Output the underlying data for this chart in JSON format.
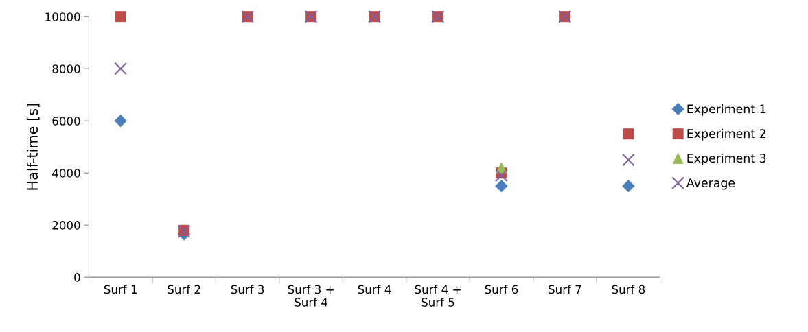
{
  "chart_data": {
    "type": "scatter",
    "ylabel": "Half-time [s]",
    "categories": [
      "Surf 1",
      "Surf 2",
      "Surf 3",
      "Surf 3 +\nSurf 4",
      "Surf 4",
      "Surf 4 +\nSurf 5",
      "Surf 6",
      "Surf 7",
      "Surf 8"
    ],
    "series": [
      {
        "name": "Experiment 1",
        "color": "#4a7ebb",
        "marker": "diamond",
        "values": [
          6000,
          1650,
          null,
          null,
          null,
          null,
          3500,
          null,
          3500
        ]
      },
      {
        "name": "Experiment 2",
        "color": "#be4b48",
        "marker": "square",
        "values": [
          10000,
          1800,
          10000,
          10000,
          10000,
          10000,
          4000,
          10000,
          5500
        ]
      },
      {
        "name": "Experiment 3",
        "color": "#98b954",
        "marker": "triangle",
        "values": [
          null,
          null,
          null,
          null,
          null,
          null,
          4200,
          null,
          null
        ]
      },
      {
        "name": "Average",
        "color": "#7d60a0",
        "marker": "cross",
        "values": [
          8000,
          1750,
          10000,
          10000,
          10000,
          10000,
          3900,
          10000,
          4500
        ]
      }
    ],
    "ylim": [
      0,
      10000
    ],
    "yticks": [
      0,
      2000,
      4000,
      6000,
      8000,
      10000
    ],
    "grid": false,
    "legend": "right"
  }
}
